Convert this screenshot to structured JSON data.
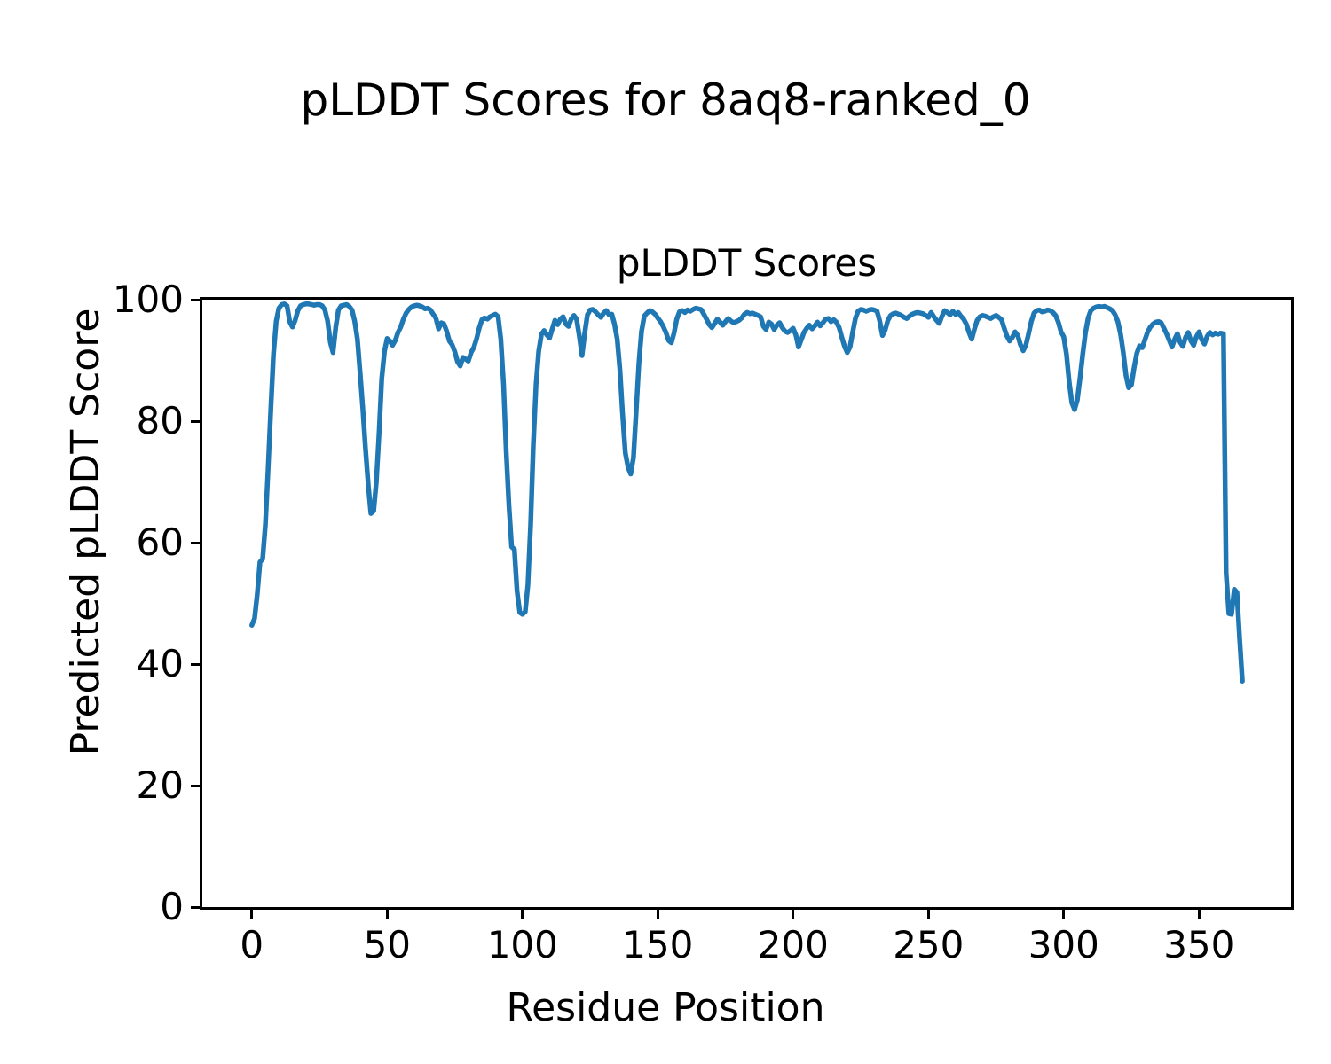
{
  "figure": {
    "background": "#ffffff",
    "text_color": "#000000"
  },
  "chart_data": {
    "type": "line",
    "suptitle": "pLDDT Scores for 8aq8-ranked_0",
    "title": "pLDDT Scores",
    "xlabel": "Residue Position",
    "ylabel": "Predicted pLDDT Score",
    "xlim": [
      -18.3,
      384.0
    ],
    "ylim": [
      0,
      100
    ],
    "xticks": [
      0,
      50,
      100,
      150,
      200,
      250,
      300,
      350
    ],
    "yticks": [
      0,
      20,
      40,
      60,
      80,
      100
    ],
    "grid": false,
    "legend": "none",
    "line_color": "#1f77b4",
    "line_width": 5.5,
    "series": [
      {
        "name": "pLDDT",
        "x_start": 0,
        "x_step": 1,
        "y": [
          46.4,
          47.5,
          51.5,
          56.8,
          57.3,
          63.0,
          72.0,
          82.0,
          91.0,
          96.5,
          98.6,
          99.2,
          99.3,
          99.0,
          96.4,
          95.5,
          96.6,
          98.2,
          99.0,
          99.2,
          99.3,
          99.3,
          99.2,
          99.1,
          99.2,
          99.2,
          99.0,
          98.3,
          96.5,
          93.0,
          91.3,
          95.5,
          98.3,
          99.0,
          99.1,
          99.2,
          98.9,
          98.3,
          96.5,
          93.5,
          88.0,
          82.0,
          75.5,
          69.5,
          64.8,
          65.2,
          70.0,
          78.0,
          87.0,
          91.5,
          93.6,
          93.2,
          92.5,
          93.3,
          94.6,
          95.5,
          96.8,
          97.8,
          98.4,
          98.8,
          99.0,
          99.1,
          99.0,
          98.8,
          98.5,
          98.6,
          98.3,
          97.6,
          97.0,
          95.2,
          96.2,
          96.0,
          94.8,
          93.2,
          92.6,
          91.4,
          89.8,
          89.1,
          90.5,
          90.2,
          89.9,
          91.3,
          92.1,
          93.5,
          95.3,
          96.7,
          97.0,
          96.8,
          97.2,
          97.4,
          97.6,
          97.2,
          93.5,
          86.0,
          75.0,
          66.0,
          59.3,
          58.9,
          52.0,
          48.5,
          48.2,
          48.6,
          53.0,
          63.0,
          76.0,
          86.0,
          91.5,
          94.3,
          94.9,
          94.2,
          93.7,
          95.2,
          96.6,
          95.9,
          96.8,
          97.2,
          96.0,
          95.6,
          96.8,
          97.4,
          96.8,
          94.0,
          90.8,
          94.5,
          97.5,
          98.3,
          98.4,
          98.0,
          97.5,
          97.1,
          97.8,
          98.2,
          97.5,
          97.6,
          96.0,
          93.5,
          88.5,
          81.0,
          74.8,
          72.4,
          71.3,
          74.0,
          81.5,
          89.5,
          94.8,
          97.3,
          97.8,
          98.2,
          98.0,
          97.6,
          97.0,
          96.4,
          95.6,
          94.6,
          93.3,
          92.9,
          94.5,
          96.8,
          98.0,
          98.2,
          97.9,
          98.3,
          98.1,
          98.4,
          98.6,
          98.5,
          98.4,
          97.6,
          96.8,
          95.9,
          95.4,
          96.1,
          96.8,
          96.3,
          95.8,
          96.4,
          96.9,
          96.5,
          96.2,
          96.4,
          96.6,
          97.0,
          97.6,
          97.9,
          97.7,
          97.8,
          97.6,
          97.4,
          97.2,
          95.6,
          95.1,
          96.3,
          96.0,
          95.1,
          95.8,
          96.2,
          95.4,
          94.8,
          94.6,
          94.9,
          95.3,
          94.2,
          92.2,
          93.4,
          94.6,
          95.3,
          95.8,
          95.2,
          95.7,
          96.3,
          95.7,
          96.2,
          96.8,
          96.9,
          96.4,
          96.7,
          96.3,
          95.4,
          93.8,
          92.3,
          91.3,
          92.2,
          94.6,
          96.9,
          98.1,
          98.4,
          98.3,
          98.1,
          98.3,
          98.4,
          98.3,
          98.1,
          96.5,
          94.1,
          95.0,
          96.6,
          97.4,
          97.7,
          97.8,
          97.6,
          97.4,
          97.1,
          96.9,
          97.3,
          97.6,
          97.8,
          97.9,
          97.8,
          97.7,
          97.4,
          97.1,
          97.9,
          97.2,
          96.6,
          96.1,
          97.3,
          98.2,
          97.9,
          97.5,
          98.1,
          97.6,
          97.9,
          97.3,
          96.8,
          96.0,
          94.6,
          93.5,
          95.2,
          96.6,
          97.2,
          97.4,
          97.3,
          97.1,
          96.9,
          97.2,
          97.4,
          97.1,
          96.7,
          95.3,
          94.0,
          93.2,
          93.8,
          94.7,
          94.1,
          92.6,
          91.6,
          92.5,
          94.4,
          96.4,
          97.8,
          98.2,
          98.3,
          98.0,
          98.1,
          98.3,
          98.2,
          97.9,
          97.4,
          96.3,
          94.7,
          93.9,
          91.0,
          86.5,
          83.0,
          81.9,
          83.5,
          87.0,
          91.0,
          94.5,
          97.0,
          98.2,
          98.6,
          98.8,
          98.9,
          98.8,
          98.9,
          98.7,
          98.5,
          98.2,
          97.5,
          96.4,
          94.3,
          91.3,
          87.5,
          85.5,
          86.0,
          88.8,
          91.2,
          92.4,
          92.1,
          93.4,
          94.7,
          95.5,
          96.0,
          96.3,
          96.4,
          96.2,
          95.3,
          94.4,
          93.3,
          92.2,
          93.5,
          94.4,
          93.0,
          92.3,
          93.8,
          94.6,
          93.2,
          92.5,
          93.9,
          94.7,
          93.4,
          92.7,
          94.0,
          94.6,
          94.2,
          94.5,
          94.3,
          94.5,
          94.4,
          55.0,
          48.3,
          48.2,
          52.3,
          51.8,
          44.0,
          37.2
        ]
      }
    ]
  }
}
